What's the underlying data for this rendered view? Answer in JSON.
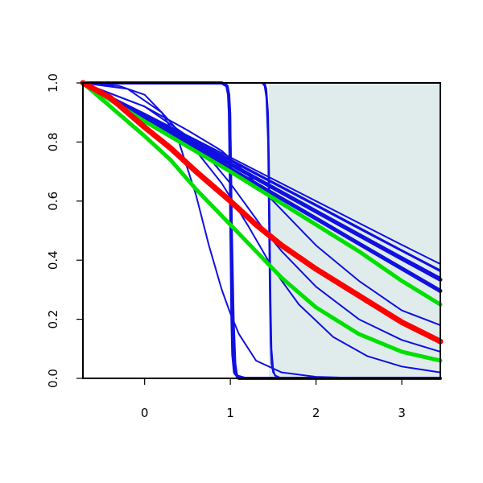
{
  "chart_data": {
    "type": "line",
    "title": "",
    "xlabel": "",
    "ylabel": "",
    "xlim": [
      -0.72,
      3.45
    ],
    "ylim": [
      0,
      1
    ],
    "xticks": [
      0,
      1,
      2,
      3
    ],
    "yticks": [
      "0.0",
      "0.2",
      "0.4",
      "0.6",
      "0.8",
      "1.0"
    ],
    "shaded_region": {
      "x": [
        1.45,
        3.45
      ],
      "color": "#e0ecec"
    },
    "grid": false,
    "colors": {
      "blue": "#1010e0",
      "red": "#ff0000",
      "green": "#00e000"
    },
    "series": [
      {
        "color": "blue",
        "width": 2,
        "x": [
          -0.72,
          0,
          0.5,
          1,
          1.5,
          2,
          2.5,
          3,
          3.45
        ],
        "y": [
          1,
          0.877,
          0.792,
          0.707,
          0.622,
          0.537,
          0.452,
          0.367,
          0.291
        ]
      },
      {
        "color": "blue",
        "width": 2,
        "x": [
          -0.72,
          0,
          0.5,
          1,
          1.5,
          2,
          2.5,
          3,
          3.45
        ],
        "y": [
          1,
          0.89,
          0.813,
          0.736,
          0.66,
          0.584,
          0.507,
          0.431,
          0.362
        ]
      },
      {
        "color": "blue",
        "width": 2,
        "x": [
          -0.72,
          0,
          0.5,
          1,
          1.5,
          2,
          2.5,
          3,
          3.45
        ],
        "y": [
          1,
          0.896,
          0.822,
          0.748,
          0.674,
          0.6,
          0.526,
          0.452,
          0.387
        ]
      },
      {
        "color": "blue",
        "width": 2,
        "x": [
          -0.72,
          0,
          0.5,
          1,
          1.5,
          2,
          2.5,
          3,
          3.45
        ],
        "y": [
          1,
          0.886,
          0.806,
          0.727,
          0.648,
          0.569,
          0.49,
          0.411,
          0.341
        ]
      },
      {
        "color": "blue",
        "width": 5,
        "x": [
          -0.72,
          0,
          0.5,
          1,
          1.5,
          2,
          2.5,
          3,
          3.45
        ],
        "y": [
          1,
          0.885,
          0.805,
          0.725,
          0.645,
          0.565,
          0.485,
          0.405,
          0.334
        ]
      },
      {
        "color": "blue",
        "width": 5,
        "x": [
          -0.72,
          0,
          0.5,
          1,
          1.5,
          2,
          2.5,
          3,
          3.45
        ],
        "y": [
          1,
          0.878,
          0.794,
          0.709,
          0.625,
          0.541,
          0.456,
          0.372,
          0.296
        ]
      },
      {
        "color": "blue",
        "width": 2,
        "x": [
          -0.72,
          0,
          0.5,
          1,
          1.5,
          2,
          2.5,
          3,
          3.45
        ],
        "y": [
          1,
          0.893,
          0.818,
          0.741,
          0.664,
          0.588,
          0.511,
          0.434,
          0.366
        ]
      },
      {
        "color": "blue",
        "width": 2,
        "x": [
          -0.72,
          -0.2,
          0.2,
          0.6,
          0.9,
          1.2,
          1.5,
          1.8,
          2.2,
          2.6,
          3,
          3.45
        ],
        "y": [
          1,
          0.98,
          0.9,
          0.77,
          0.66,
          0.52,
          0.37,
          0.25,
          0.14,
          0.075,
          0.04,
          0.02
        ]
      },
      {
        "color": "blue",
        "width": 2,
        "x": [
          -0.72,
          -0.3,
          0,
          0.2,
          0.4,
          0.6,
          0.75,
          0.9,
          1,
          1.1,
          1.3,
          1.6,
          2,
          2.5,
          3,
          3.45
        ],
        "y": [
          1,
          0.99,
          0.96,
          0.9,
          0.8,
          0.62,
          0.45,
          0.3,
          0.22,
          0.15,
          0.06,
          0.02,
          0.005,
          0.001,
          0,
          0
        ]
      },
      {
        "color": "blue",
        "width": 2,
        "x": [
          -0.72,
          0,
          0.5,
          0.8,
          1,
          1.2,
          1.4,
          1.6,
          2,
          2.5,
          3,
          3.45
        ],
        "y": [
          1,
          0.92,
          0.82,
          0.73,
          0.66,
          0.58,
          0.5,
          0.43,
          0.31,
          0.2,
          0.13,
          0.09
        ]
      },
      {
        "color": "blue",
        "width": 2,
        "x": [
          -0.72,
          0,
          0.5,
          0.9,
          1.2,
          1.5,
          2,
          2.5,
          3,
          3.45
        ],
        "y": [
          1,
          0.92,
          0.84,
          0.77,
          0.69,
          0.6,
          0.45,
          0.33,
          0.23,
          0.18
        ]
      },
      {
        "color": "blue",
        "width": 2,
        "x": [
          -0.72,
          0.9,
          0.95,
          0.98,
          1,
          1.01,
          1.02,
          1.04,
          1.06,
          1.08,
          1.2,
          3.45
        ],
        "y": [
          1,
          1,
          0.995,
          0.97,
          0.9,
          0.7,
          0.5,
          0.2,
          0.05,
          0.01,
          0,
          0
        ]
      },
      {
        "color": "blue",
        "width": 4,
        "x": [
          -0.72,
          0.9,
          0.96,
          0.98,
          0.99,
          1,
          1.01,
          1.02,
          1.03,
          1.05,
          1.1,
          3.45
        ],
        "y": [
          1,
          1,
          0.99,
          0.96,
          0.9,
          0.7,
          0.45,
          0.2,
          0.08,
          0.02,
          0,
          0
        ]
      },
      {
        "color": "blue",
        "width": 2,
        "x": [
          -0.72,
          1.4,
          1.42,
          1.44,
          1.45,
          1.46,
          1.47,
          1.48,
          1.5,
          1.52,
          1.6,
          3.45
        ],
        "y": [
          1,
          1,
          0.98,
          0.9,
          0.75,
          0.5,
          0.25,
          0.1,
          0.03,
          0.01,
          0,
          0
        ]
      },
      {
        "color": "blue",
        "width": 2,
        "x": [
          -0.72,
          1.37,
          1.4,
          1.42,
          1.44,
          1.45,
          1.46,
          1.47,
          1.48,
          1.5,
          1.55,
          3.45
        ],
        "y": [
          1,
          1,
          0.99,
          0.95,
          0.8,
          0.55,
          0.3,
          0.12,
          0.05,
          0.02,
          0,
          0
        ]
      },
      {
        "color": "green",
        "width": 5,
        "x": [
          -0.72,
          0,
          0.5,
          1,
          1.5,
          2,
          2.5,
          3,
          3.45
        ],
        "y": [
          1,
          0.87,
          0.785,
          0.7,
          0.61,
          0.52,
          0.43,
          0.33,
          0.25
        ]
      },
      {
        "color": "green",
        "width": 5,
        "x": [
          -0.72,
          -0.4,
          0,
          0.3,
          0.6,
          1,
          1.3,
          1.6,
          2,
          2.5,
          3,
          3.45
        ],
        "y": [
          1,
          0.92,
          0.82,
          0.74,
          0.64,
          0.52,
          0.43,
          0.34,
          0.24,
          0.15,
          0.09,
          0.06
        ]
      },
      {
        "color": "red",
        "width": 7,
        "x": [
          -0.72,
          -0.4,
          0,
          0.3,
          0.6,
          1,
          1.3,
          1.6,
          2,
          2.5,
          3,
          3.45
        ],
        "y": [
          1,
          0.95,
          0.85,
          0.78,
          0.7,
          0.6,
          0.52,
          0.45,
          0.37,
          0.28,
          0.19,
          0.125
        ]
      }
    ]
  }
}
